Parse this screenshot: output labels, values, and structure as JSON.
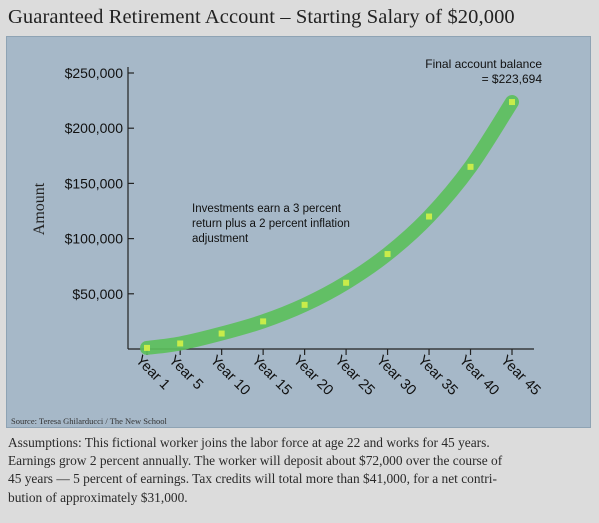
{
  "title": "Guaranteed Retirement Account – Starting Salary of $20,000",
  "source": "Source: Teresa Ghilarducci / The New School",
  "assumptions_lines": [
    "Assumptions: This fictional worker joins the labor force at age 22 and works for 45 years.",
    "Earnings grow 2 percent annually. The worker will deposit about $72,000 over the course of",
    "45 years — 5 percent of earnings. Tax credits will total more than $41,000, for a net contri-",
    "bution of approximately $31,000."
  ],
  "colors": {
    "background": "#dcdcdc",
    "plot_background": "#a6b8c8",
    "curve": "#5cbf5c",
    "marker": "#c8ec4a"
  },
  "chart_data": {
    "type": "line",
    "title": "Guaranteed Retirement Account – Starting Salary of $20,000",
    "ylabel": "Amount",
    "xlabel": "",
    "x_tick_labels": [
      "Year 1",
      "Year 5",
      "Year 10",
      "Year 15",
      "Year 20",
      "Year 25",
      "Year 30",
      "Year 35",
      "Year 40",
      "Year 45"
    ],
    "y_tick_labels": [
      "$50,000",
      "$100,000",
      "$150,000",
      "$200,000",
      "$250,000"
    ],
    "y_ticks": [
      50000,
      100000,
      150000,
      200000,
      250000
    ],
    "ylim": [
      0,
      250000
    ],
    "grid": false,
    "series": [
      {
        "x": [
          1,
          5,
          10,
          15,
          20,
          25,
          30,
          35,
          40,
          45
        ],
        "values": [
          1000,
          5000,
          14000,
          25000,
          40000,
          60000,
          86000,
          120000,
          165000,
          223694
        ]
      }
    ],
    "annotations": [
      {
        "id": "final",
        "lines": [
          "Final account balance",
          "= $223,694"
        ]
      },
      {
        "id": "investments",
        "lines": [
          "Investments earn a 3 percent",
          "return plus a 2 percent inflation",
          "adjustment"
        ]
      }
    ]
  }
}
